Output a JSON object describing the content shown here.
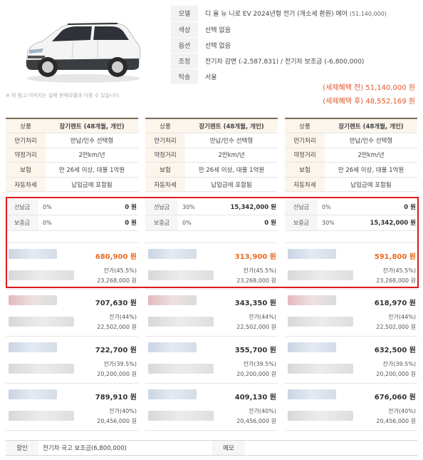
{
  "header": {
    "disclaimer": "※ 위 참고 이미지는 실제 판매모델과 다를 수 있습니다.",
    "specs": [
      {
        "label": "모델",
        "value": "디 올 뉴 니로 EV 2024년형 전기 (개소세 환원) 에어",
        "note": "(51,140,000)"
      },
      {
        "label": "색상",
        "value": "선택 없음",
        "note": ""
      },
      {
        "label": "옵션",
        "value": "선택 없음",
        "note": ""
      },
      {
        "label": "조정",
        "value": "전기차 감면 (-2,587,831) / 전기차 보조금 (-6,800,000)",
        "note": ""
      },
      {
        "label": "탁송",
        "value": "서울",
        "note": ""
      }
    ],
    "price_before": "(세제혜택 전) 51,140,000 원",
    "price_after": "(세제혜택 후) 48,552,169 원"
  },
  "columns": [
    {
      "info": [
        {
          "label": "상품",
          "value": "장기렌트 (48개월, 개인)"
        },
        {
          "label": "만기처리",
          "value": "반납/인수 선택형"
        },
        {
          "label": "약정거리",
          "value": "2만km/년"
        },
        {
          "label": "보험",
          "value": "만 26세 이상, 대물 1억원"
        },
        {
          "label": "자동차세",
          "value": "납입금에 포함됨"
        }
      ],
      "prepay": {
        "label": "선납금",
        "pct": "0%",
        "amount": "0 원"
      },
      "deposit": {
        "label": "보증금",
        "pct": "0%",
        "amount": "0 원"
      },
      "offers": [
        {
          "rent": "680,900 원",
          "resid_pct": "잔가(45.5%)",
          "resid_amt": "23,268,000 원"
        },
        {
          "rent": "707,630 원",
          "resid_pct": "잔가(44%)",
          "resid_amt": "22,502,000 원"
        },
        {
          "rent": "722,700 원",
          "resid_pct": "잔가(39.5%)",
          "resid_amt": "20,200,000 원"
        },
        {
          "rent": "789,910 원",
          "resid_pct": "잔가(40%)",
          "resid_amt": "20,456,000 원"
        }
      ]
    },
    {
      "info": [
        {
          "label": "상품",
          "value": "장기렌트 (48개월, 개인)"
        },
        {
          "label": "만기처리",
          "value": "반납/인수 선택형"
        },
        {
          "label": "약정거리",
          "value": "2만km/년"
        },
        {
          "label": "보험",
          "value": "만 26세 이상, 대물 1억원"
        },
        {
          "label": "자동차세",
          "value": "납입금에 포함됨"
        }
      ],
      "prepay": {
        "label": "선납금",
        "pct": "30%",
        "amount": "15,342,000 원"
      },
      "deposit": {
        "label": "보증금",
        "pct": "0%",
        "amount": "0 원"
      },
      "offers": [
        {
          "rent": "313,900 원",
          "resid_pct": "잔가(45.5%)",
          "resid_amt": "23,268,000 원"
        },
        {
          "rent": "343,350 원",
          "resid_pct": "잔가(44%)",
          "resid_amt": "22,502,000 원"
        },
        {
          "rent": "355,700 원",
          "resid_pct": "잔가(39.5%)",
          "resid_amt": "20,200,000 원"
        },
        {
          "rent": "409,130 원",
          "resid_pct": "잔가(40%)",
          "resid_amt": "20,456,000 원"
        }
      ]
    },
    {
      "info": [
        {
          "label": "상품",
          "value": "장기렌트 (48개월, 개인)"
        },
        {
          "label": "만기처리",
          "value": "반납/인수 선택형"
        },
        {
          "label": "약정거리",
          "value": "2만km/년"
        },
        {
          "label": "보험",
          "value": "만 26세 이상, 대물 1억원"
        },
        {
          "label": "자동차세",
          "value": "납입금에 포함됨"
        }
      ],
      "prepay": {
        "label": "선납금",
        "pct": "0%",
        "amount": "0 원"
      },
      "deposit": {
        "label": "보증금",
        "pct": "30%",
        "amount": "15,342,000 원"
      },
      "offers": [
        {
          "rent": "591,800 원",
          "resid_pct": "잔가(45.5%)",
          "resid_amt": "23,268,000 원"
        },
        {
          "rent": "618,970 원",
          "resid_pct": "잔가(44%)",
          "resid_amt": "22,502,000 원"
        },
        {
          "rent": "632,500 원",
          "resid_pct": "잔가(39.5%)",
          "resid_amt": "20,200,000 원"
        },
        {
          "rent": "676,060 원",
          "resid_pct": "잔가(40%)",
          "resid_amt": "20,456,000 원"
        }
      ]
    }
  ],
  "footer": {
    "discount_label": "할인",
    "discount_value": "전기차 국고 보조금(6,800,000)",
    "memo_label": "메모",
    "memo_value": ""
  },
  "colors": {
    "accent_orange": "#ea6a22",
    "highlight_red": "#e01818",
    "header_bar": "#7d6b5a"
  }
}
